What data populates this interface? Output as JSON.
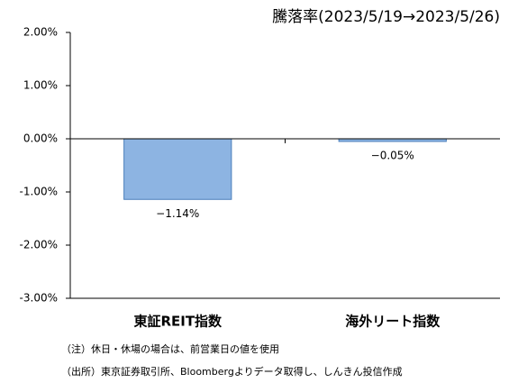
{
  "chart_data": {
    "type": "bar",
    "title": "騰落率(2023/5/19→2023/5/26)",
    "categories": [
      "東証REIT指数",
      "海外リート指数"
    ],
    "values": [
      -1.14,
      -0.05
    ],
    "value_labels": [
      "−1.14%",
      "−0.05%"
    ],
    "color": "#8db4e2",
    "ylim": [
      -3,
      2
    ],
    "yticks": [
      {
        "value": 2,
        "label": "2.00%"
      },
      {
        "value": 1,
        "label": "1.00%"
      },
      {
        "value": 0,
        "label": "0.00%"
      },
      {
        "value": -1,
        "label": "-1.00%"
      },
      {
        "value": -2,
        "label": "-2.00%"
      },
      {
        "value": -3,
        "label": "-3.00%"
      }
    ],
    "notes": [
      "（注）休日・休場の場合は、前営業日の値を使用",
      "（出所）東京証券取引所、Bloombergよりデータ取得し、しんきん投信作成"
    ]
  }
}
